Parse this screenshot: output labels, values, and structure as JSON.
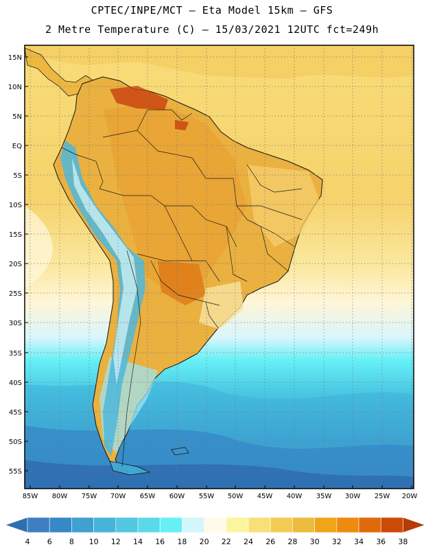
{
  "header": {
    "line1": "CPTEC/INPE/MCT –  Eta Model 15km – GFS",
    "line2": "2 Metre Temperature (C) – 15/03/2021 12UTC fct=249h"
  },
  "lat_labels": [
    "15N",
    "10N",
    "5N",
    "EQ",
    "5S",
    "10S",
    "15S",
    "20S",
    "25S",
    "30S",
    "35S",
    "40S",
    "45S",
    "50S",
    "55S"
  ],
  "lon_labels": [
    "85W",
    "80W",
    "75W",
    "70W",
    "65W",
    "60W",
    "55W",
    "50W",
    "45W",
    "40W",
    "35W",
    "30W",
    "25W",
    "20W"
  ],
  "legend": {
    "values": [
      "4",
      "6",
      "8",
      "10",
      "12",
      "14",
      "16",
      "18",
      "20",
      "22",
      "24",
      "26",
      "28",
      "30",
      "32",
      "34",
      "36",
      "38"
    ],
    "colors": [
      "#3d7fc0",
      "#3688c6",
      "#40a0d0",
      "#48b3d8",
      "#52c7e0",
      "#5ad9ea",
      "#66f0f6",
      "#d2f6fc",
      "#fffbe8",
      "#fdf4a0",
      "#f8e078",
      "#f2cc55",
      "#ecbc3e",
      "#f0a418",
      "#ee8a0e",
      "#e06a0a",
      "#cc4a08"
    ],
    "under_color": "#2e6fb0",
    "over_color": "#b83a06"
  },
  "colors": {
    "ocean_hot": "#f3c85a",
    "ocean_warm": "#f8dc78",
    "ocean_mild": "#fdf0a8",
    "ocean_cool": "#fff8e0",
    "ocean_cold1": "#66f0f6",
    "ocean_cold2": "#3fb8dc",
    "ocean_cold3": "#3b8fc8",
    "ocean_cold4": "#2f6fb2"
  }
}
